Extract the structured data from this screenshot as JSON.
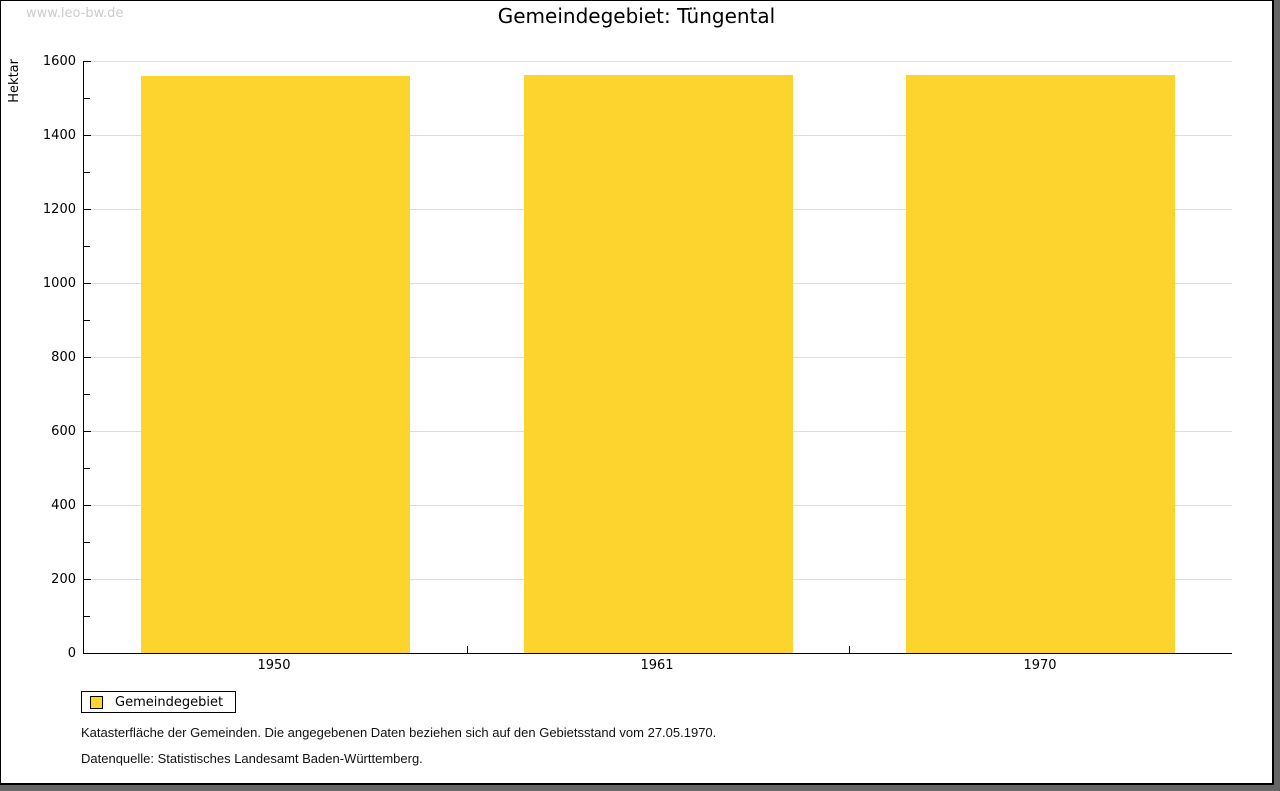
{
  "watermark": "www.leo-bw.de",
  "title": "Gemeindegebiet: Tüngental",
  "chart_data": {
    "type": "bar",
    "title": "Gemeindegebiet: Tüngental",
    "categories": [
      "1950",
      "1961",
      "1970"
    ],
    "series": [
      {
        "name": "Gemeindegebiet",
        "values": [
          1560,
          1563,
          1563
        ]
      }
    ],
    "xlabel": "",
    "ylabel": "Hektar",
    "ylim": [
      0,
      1600
    ],
    "y_major_step": 200,
    "y_minor_step": 100,
    "grid": "horizontal-major-only",
    "legend_position": "bottom-left-outside"
  },
  "legend": {
    "items": [
      {
        "label": "Gemeindegebiet",
        "color": "#FCD42D"
      }
    ]
  },
  "footnotes": [
    "Katasterfläche der Gemeinden. Die angegebenen Daten beziehen sich auf den Gebietsstand vom 27.05.1970.",
    "Datenquelle: Statistisches Landesamt Baden-Württemberg."
  ],
  "colors": {
    "bar": "#FCD42D",
    "grid": "#DDDDDD",
    "axis": "#000000",
    "watermark": "#CCCCCC"
  }
}
